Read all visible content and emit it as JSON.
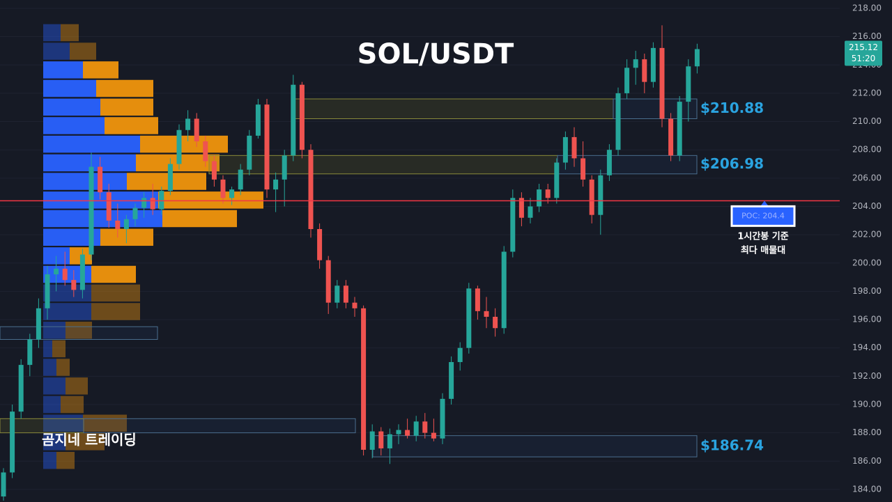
{
  "chart_data": {
    "type": "candlestick",
    "title": "SOL/USDT",
    "watermark": "곰지네 트레이딩",
    "ylim": [
      183.11,
      218.59
    ],
    "yticks": [
      {
        "value": 184,
        "label": "184.00"
      },
      {
        "value": 186,
        "label": "186.00"
      },
      {
        "value": 188,
        "label": "188.00"
      },
      {
        "value": 190,
        "label": "190.00"
      },
      {
        "value": 192,
        "label": "192.00"
      },
      {
        "value": 194,
        "label": "194.00"
      },
      {
        "value": 196,
        "label": "196.00"
      },
      {
        "value": 198,
        "label": "198.00"
      },
      {
        "value": 200,
        "label": "200.00"
      },
      {
        "value": 202,
        "label": "202.00"
      },
      {
        "value": 204,
        "label": "204.00"
      },
      {
        "value": 206,
        "label": "206.00"
      },
      {
        "value": 208,
        "label": "208.00"
      },
      {
        "value": 210,
        "label": "210.00"
      },
      {
        "value": 212,
        "label": "212.00"
      },
      {
        "value": 214,
        "label": "214.00"
      },
      {
        "value": 216,
        "label": "216.00"
      },
      {
        "value": 218,
        "label": "218.00"
      }
    ],
    "grid": true,
    "up_color": "#26a69a",
    "down_color": "#ef5350",
    "candles": [
      [
        183.5,
        185.5,
        183.2,
        185.2
      ],
      [
        185.2,
        190,
        184.8,
        189.5
      ],
      [
        189.5,
        193.2,
        189,
        192.8
      ],
      [
        192.8,
        195,
        192,
        194.6
      ],
      [
        194.6,
        197.5,
        194,
        196.8
      ],
      [
        196.8,
        199.8,
        196,
        199.2
      ],
      [
        199.2,
        200.5,
        198,
        199.6
      ],
      [
        199.6,
        200.8,
        198.4,
        198.8
      ],
      [
        198.8,
        199.5,
        197.6,
        198.1
      ],
      [
        198.1,
        201,
        197.5,
        200.6
      ],
      [
        200.6,
        207.8,
        200.2,
        206.8
      ],
      [
        206.8,
        207.5,
        204.5,
        205
      ],
      [
        205,
        205.6,
        202.5,
        203
      ],
      [
        203,
        204.2,
        201.8,
        202.4
      ],
      [
        202.4,
        203.4,
        201.4,
        203.1
      ],
      [
        203.1,
        204.2,
        202.6,
        203.9
      ],
      [
        203.9,
        205,
        203.2,
        204.6
      ],
      [
        204.6,
        205.6,
        203.4,
        203.8
      ],
      [
        203.8,
        205.4,
        203.4,
        205.1
      ],
      [
        205.1,
        207.4,
        204.8,
        207
      ],
      [
        207,
        209.8,
        206.6,
        209.4
      ],
      [
        209.4,
        210.8,
        208.6,
        210.2
      ],
      [
        210.2,
        210.6,
        208.2,
        208.6
      ],
      [
        208.6,
        209,
        206.8,
        207.2
      ],
      [
        207.2,
        207.6,
        205.4,
        205.9
      ],
      [
        205.9,
        206.2,
        204.2,
        204.6
      ],
      [
        204.6,
        205.4,
        204.1,
        205.2
      ],
      [
        205.2,
        207,
        204.8,
        206.6
      ],
      [
        206.6,
        209.4,
        206.2,
        209
      ],
      [
        209,
        211.6,
        208.8,
        211.2
      ],
      [
        211.2,
        211.6,
        204.6,
        205.2
      ],
      [
        205.2,
        206.4,
        203.6,
        205.9
      ],
      [
        205.9,
        208,
        204,
        207.6
      ],
      [
        207.6,
        213.3,
        207.2,
        212.6
      ],
      [
        212.6,
        212.8,
        207.4,
        208
      ],
      [
        208,
        208.4,
        201.8,
        202.4
      ],
      [
        202.4,
        202.8,
        199.6,
        200.2
      ],
      [
        200.2,
        200.5,
        196.4,
        197.2
      ],
      [
        197.2,
        198.8,
        196.8,
        198.4
      ],
      [
        198.4,
        198.8,
        196.8,
        197.2
      ],
      [
        197.2,
        197.6,
        196.2,
        196.8
      ],
      [
        196.8,
        197,
        186.4,
        186.8
      ],
      [
        186.8,
        188.6,
        186.2,
        188.1
      ],
      [
        188.1,
        188.4,
        186.4,
        186.9
      ],
      [
        186.9,
        188.3,
        185.8,
        187.9
      ],
      [
        187.9,
        188.6,
        187.2,
        188.2
      ],
      [
        188.2,
        189,
        187.6,
        187.8
      ],
      [
        187.8,
        189.2,
        187.4,
        188.8
      ],
      [
        188.8,
        189.4,
        187.6,
        188
      ],
      [
        188,
        189,
        187.4,
        187.6
      ],
      [
        187.6,
        190.8,
        187.2,
        190.4
      ],
      [
        190.4,
        193.4,
        190,
        193
      ],
      [
        193,
        194.4,
        192.4,
        194
      ],
      [
        194,
        198.6,
        193.6,
        198.2
      ],
      [
        198.2,
        198.4,
        196,
        196.6
      ],
      [
        196.6,
        197.6,
        195.4,
        196.2
      ],
      [
        196.2,
        196.8,
        194.8,
        195.4
      ],
      [
        195.4,
        201.2,
        195,
        200.8
      ],
      [
        200.8,
        205.2,
        200.4,
        204.6
      ],
      [
        204.6,
        205,
        202.6,
        203.2
      ],
      [
        203.2,
        204.6,
        202.8,
        204
      ],
      [
        204,
        205.6,
        203.6,
        205.2
      ],
      [
        205.2,
        205.6,
        204.2,
        204.6
      ],
      [
        204.6,
        207.4,
        204.2,
        207.1
      ],
      [
        207.1,
        209.3,
        206.6,
        208.9
      ],
      [
        208.9,
        209.6,
        206.8,
        207.4
      ],
      [
        207.4,
        208.6,
        205.4,
        205.9
      ],
      [
        205.9,
        206.2,
        202.8,
        203.4
      ],
      [
        203.4,
        206.6,
        202,
        206.2
      ],
      [
        206.2,
        208.4,
        205.8,
        208
      ],
      [
        208,
        212.4,
        207.6,
        212
      ],
      [
        212,
        214.4,
        211.6,
        213.8
      ],
      [
        213.8,
        215,
        212.6,
        214.4
      ],
      [
        214.4,
        214.8,
        212,
        212.8
      ],
      [
        212.8,
        215.6,
        212.4,
        215.2
      ],
      [
        215.2,
        216.8,
        209.6,
        210.2
      ],
      [
        210.2,
        210.6,
        207.2,
        207.6
      ],
      [
        207.6,
        211.8,
        207.2,
        211.4
      ],
      [
        211.4,
        214.4,
        210,
        213.9
      ],
      [
        213.9,
        215.5,
        213.4,
        215.12
      ]
    ],
    "last_price": {
      "value": 215.12,
      "label": "215.12",
      "countdown": "51:20"
    },
    "volume_profile": {
      "buy_color": "#2962ff",
      "sell_color": "#f0950c",
      "value_area": [
        198.5,
        214.3
      ],
      "levels": [
        216.28,
        214.97,
        213.65,
        212.34,
        211.02,
        209.71,
        208.4,
        207.08,
        205.77,
        204.45,
        203.14,
        201.82,
        200.51,
        199.2,
        197.88,
        196.57,
        195.25,
        193.94,
        192.63,
        191.31,
        190,
        188.68,
        187.37,
        186.05
      ],
      "buy": [
        25,
        38,
        57,
        76,
        82,
        88,
        139,
        133,
        120,
        165,
        171,
        82,
        38,
        69,
        69,
        69,
        32,
        13,
        19,
        32,
        25,
        57,
        32,
        19
      ],
      "sell": [
        26,
        38,
        51,
        82,
        76,
        77,
        126,
        120,
        114,
        151,
        107,
        76,
        32,
        64,
        70,
        70,
        38,
        19,
        19,
        32,
        33,
        63,
        56,
        26
      ]
    },
    "poc": {
      "value": 204.4,
      "label": "POC: 204.4",
      "color": "#f23645"
    },
    "poc_note": [
      "1시간봉 기준",
      "최다 매물대"
    ],
    "zones": [
      {
        "low": 210.2,
        "high": 211.6,
        "label": "$210.88"
      },
      {
        "low": 206.3,
        "high": 207.6,
        "label": "$206.98"
      },
      {
        "low": 186.3,
        "high": 187.8,
        "label": "$186.74"
      },
      {
        "low": 194.6,
        "high": 195.5
      },
      {
        "low": 188.0,
        "high": 189.0
      }
    ]
  }
}
